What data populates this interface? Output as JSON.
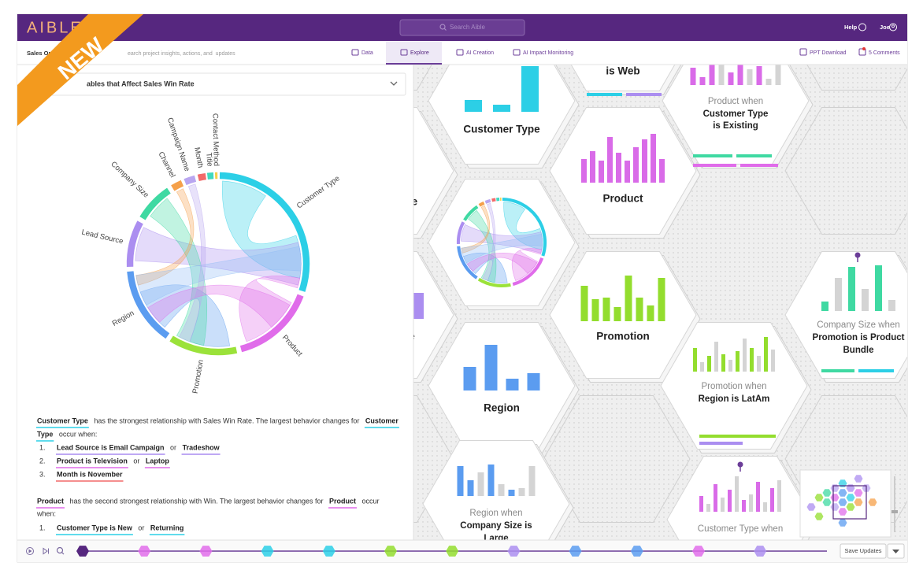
{
  "header": {
    "logo": "AIBLE",
    "search_placeholder": "Search Aible",
    "help": "Help",
    "user": "Joe"
  },
  "toolbar": {
    "project": "Sales Op",
    "search_placeholder": "earch project insights, actions, and  updates",
    "tabs": [
      "Data",
      "Explore",
      "AI Creation",
      "AI Impact Monitoring"
    ],
    "actions": [
      "PPT Download",
      "5 Comments"
    ]
  },
  "banner": "NEW",
  "insight": {
    "dropdown": "ables that Affect Sales Win Rate",
    "chord_labels": [
      "Customer Type",
      "Product",
      "Promotion",
      "Region",
      "Lead Source",
      "Company Size",
      "Channel",
      "Campaign Name",
      "Month",
      "Title",
      "Contact Method"
    ],
    "paragraphs": [
      {
        "lines": [
          [
            {
              "text": "Customer Type",
              "underline": "#2ccfe6"
            },
            " has the strongest relationship with Sales Win Rate. The largest behavior changes for ",
            {
              "text": "Customer",
              "underline": "#2ccfe6"
            }
          ],
          [
            {
              "text": "Type",
              "underline": "#2ccfe6"
            },
            " occur when:"
          ]
        ],
        "items": [
          {
            "number": "1.",
            "runs": [
              {
                "text": "Lead Source is Email Campaign",
                "underline": "#a98cf0"
              },
              " or ",
              {
                "text": "Tradeshow",
                "underline": "#a98cf0"
              }
            ]
          },
          {
            "number": "2.",
            "runs": [
              {
                "text": "Product is Television",
                "underline": "#e06cea"
              },
              " or ",
              {
                "text": "Laptop",
                "underline": "#e06cea"
              }
            ]
          },
          {
            "number": "3.",
            "runs": [
              {
                "text": "Month is November",
                "underline": "#f26a6a"
              }
            ]
          }
        ]
      },
      {
        "lines": [
          [
            {
              "text": "Product",
              "underline": "#e06cea"
            },
            " has the second strongest relationship with Win. The largest behavior changes for ",
            {
              "text": "Product",
              "underline": "#e06cea"
            },
            " occur"
          ],
          [
            "when:"
          ]
        ],
        "items": [
          {
            "number": "1.",
            "runs": [
              {
                "text": "Customer Type is New",
                "underline": "#2ccfe6"
              },
              " or ",
              {
                "text": "Returning",
                "underline": "#2ccfe6"
              }
            ]
          }
        ]
      }
    ]
  },
  "hexes": [
    {
      "lines": [
        "is Web"
      ]
    },
    {
      "lines": [
        "Customer Type"
      ],
      "bars": [
        15,
        9,
        58
      ],
      "colors": [
        "#2ccfe6",
        "#2ccfe6",
        "#2ccfe6"
      ]
    },
    {
      "lines": [
        "Product when",
        "Customer Type",
        "is Existing"
      ],
      "bars": [
        22,
        10,
        28,
        30,
        16,
        26,
        20,
        24,
        8,
        26
      ],
      "colors": [
        "#d96be8",
        "#d96be8",
        "#d96be8",
        "#d4d4d4",
        "#d96be8",
        "#d96be8",
        "#d4d4d4",
        "#d96be8",
        "#d4d4d4",
        "#d4d4d4"
      ]
    },
    {
      "lines": [
        "Product"
      ],
      "bars": [
        30,
        40,
        28,
        58,
        38,
        28,
        45,
        55,
        62,
        30
      ],
      "colors": [
        "#d96be8",
        "#d96be8",
        "#d96be8",
        "#d96be8",
        "#d96be8",
        "#d96be8",
        "#d96be8",
        "#d96be8",
        "#d96be8",
        "#d96be8"
      ]
    },
    {
      "lines": [
        "Promotion"
      ],
      "bars": [
        45,
        28,
        30,
        18,
        58,
        30,
        20,
        55
      ],
      "colors": [
        "#93dd2e",
        "#93dd2e",
        "#93dd2e",
        "#93dd2e",
        "#93dd2e",
        "#93dd2e",
        "#93dd2e",
        "#93dd2e"
      ]
    },
    {
      "lines": [
        "Company Size when",
        "Promotion is Product",
        "Bundle"
      ],
      "bars": [
        12,
        42,
        56,
        28,
        58,
        14
      ],
      "colors": [
        "#3fd9a2",
        "#d4d4d4",
        "#3fd9a2",
        "#d4d4d4",
        "#3fd9a2",
        "#d4d4d4"
      ]
    },
    {
      "lines": [
        "Region"
      ],
      "bars": [
        30,
        58,
        15,
        22
      ],
      "colors": [
        "#5b9cf0",
        "#5b9cf0",
        "#5b9cf0",
        "#5b9cf0"
      ]
    },
    {
      "lines": [
        "Promotion when",
        "Region is LatAm"
      ],
      "bars": [
        30,
        12,
        20,
        38,
        22,
        15,
        26,
        42,
        30,
        20,
        44,
        28
      ],
      "colors": [
        "#93dd2e",
        "#d4d4d4",
        "#93dd2e",
        "#d4d4d4",
        "#93dd2e",
        "#d4d4d4",
        "#93dd2e",
        "#d4d4d4",
        "#93dd2e",
        "#d4d4d4",
        "#93dd2e",
        "#d4d4d4"
      ]
    },
    {
      "lines": [
        "Region when",
        "Company Size is",
        "Large"
      ],
      "bars": [
        38,
        20,
        30,
        40,
        15,
        8,
        10,
        38
      ],
      "colors": [
        "#5b9cf0",
        "#5b9cf0",
        "#d4d4d4",
        "#5b9cf0",
        "#d4d4d4",
        "#5b9cf0",
        "#d4d4d4",
        "#d4d4d4"
      ]
    },
    {
      "lines": [
        "Customer Type when"
      ],
      "bars": [
        20,
        10,
        35,
        18,
        28,
        45,
        15,
        22,
        38,
        12,
        30,
        40
      ],
      "colors": [
        "#d96be8",
        "#d4d4d4",
        "#d96be8",
        "#d4d4d4",
        "#d96be8",
        "#d4d4d4",
        "#d96be8",
        "#d4d4d4",
        "#d96be8",
        "#d4d4d4",
        "#d96be8",
        "#d4d4d4"
      ]
    },
    {
      "lines": [
        "ze"
      ]
    },
    {
      "lines": [
        "e"
      ]
    }
  ],
  "save_button": "Save Updates"
}
